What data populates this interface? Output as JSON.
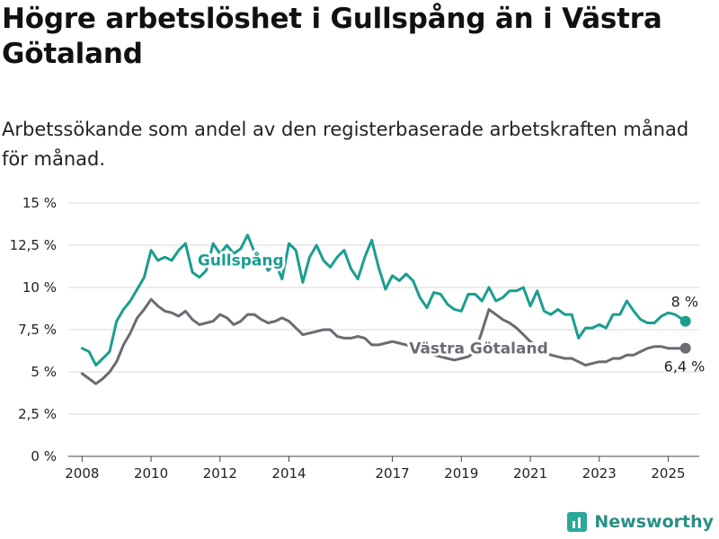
{
  "title": "Högre arbetslöshet i Gullspång än i Västra Götaland",
  "subtitle": "Arbetssökande som andel av den registerbaserade arbetskraften månad för månad.",
  "brand": {
    "name": "Newsworthy",
    "logo_icon": "bar-chart-icon"
  },
  "chart_data": {
    "type": "line",
    "xlim": [
      2007.6,
      2025.9
    ],
    "ylim": [
      0,
      15
    ],
    "y_ticks": [
      {
        "value": 0,
        "label": "0 %"
      },
      {
        "value": 2.5,
        "label": "2,5 %"
      },
      {
        "value": 5,
        "label": "5 %"
      },
      {
        "value": 7.5,
        "label": "7,5 %"
      },
      {
        "value": 10,
        "label": "10 %"
      },
      {
        "value": 12.5,
        "label": "12,5 %"
      },
      {
        "value": 15,
        "label": "15 %"
      }
    ],
    "x_ticks": [
      {
        "value": 2008,
        "label": "2008"
      },
      {
        "value": 2010,
        "label": "2010"
      },
      {
        "value": 2012,
        "label": "2012"
      },
      {
        "value": 2014,
        "label": "2014"
      },
      {
        "value": 2017,
        "label": "2017"
      },
      {
        "value": 2019,
        "label": "2019"
      },
      {
        "value": 2021,
        "label": "2021"
      },
      {
        "value": 2023,
        "label": "2023"
      },
      {
        "value": 2025,
        "label": "2025"
      }
    ],
    "grid": true,
    "legend": "inline labels",
    "series": [
      {
        "name": "Gullspång",
        "color": "#1a9e8f",
        "end_label": "8 %",
        "x": [
          2008.0,
          2008.2,
          2008.4,
          2008.6,
          2008.8,
          2009.0,
          2009.2,
          2009.4,
          2009.6,
          2009.8,
          2010.0,
          2010.2,
          2010.4,
          2010.6,
          2010.8,
          2011.0,
          2011.2,
          2011.4,
          2011.6,
          2011.8,
          2012.0,
          2012.2,
          2012.4,
          2012.6,
          2012.8,
          2013.0,
          2013.2,
          2013.4,
          2013.6,
          2013.8,
          2014.0,
          2014.2,
          2014.4,
          2014.6,
          2014.8,
          2015.0,
          2015.2,
          2015.4,
          2015.6,
          2015.8,
          2016.0,
          2016.2,
          2016.4,
          2016.6,
          2016.8,
          2017.0,
          2017.2,
          2017.4,
          2017.6,
          2017.8,
          2018.0,
          2018.2,
          2018.4,
          2018.6,
          2018.8,
          2019.0,
          2019.2,
          2019.4,
          2019.6,
          2019.8,
          2020.0,
          2020.2,
          2020.4,
          2020.6,
          2020.8,
          2021.0,
          2021.2,
          2021.4,
          2021.6,
          2021.8,
          2022.0,
          2022.2,
          2022.4,
          2022.6,
          2022.8,
          2023.0,
          2023.2,
          2023.4,
          2023.6,
          2023.8,
          2024.0,
          2024.2,
          2024.4,
          2024.6,
          2024.8,
          2025.0,
          2025.2,
          2025.5
        ],
        "values": [
          6.4,
          6.2,
          5.4,
          5.8,
          6.2,
          8.0,
          8.7,
          9.2,
          9.9,
          10.6,
          12.2,
          11.6,
          11.8,
          11.6,
          12.2,
          12.6,
          10.9,
          10.6,
          11.0,
          12.6,
          12.0,
          12.5,
          12.0,
          12.3,
          13.1,
          12.1,
          11.7,
          11.0,
          11.5,
          10.5,
          12.6,
          12.2,
          10.3,
          11.8,
          12.5,
          11.6,
          11.2,
          11.8,
          12.2,
          11.1,
          10.5,
          11.8,
          12.8,
          11.2,
          9.9,
          10.7,
          10.4,
          10.8,
          10.4,
          9.4,
          8.8,
          9.7,
          9.6,
          9.0,
          8.7,
          8.6,
          9.6,
          9.6,
          9.2,
          10.0,
          9.2,
          9.4,
          9.8,
          9.8,
          10.0,
          8.9,
          9.8,
          8.6,
          8.4,
          8.7,
          8.4,
          8.4,
          7.0,
          7.6,
          7.6,
          7.8,
          7.6,
          8.4,
          8.4,
          9.2,
          8.6,
          8.1,
          7.9,
          7.9,
          8.3,
          8.5,
          8.4,
          8.0
        ]
      },
      {
        "name": "Västra Götaland",
        "color": "#6b6b73",
        "end_label": "6,4 %",
        "x": [
          2008.0,
          2008.2,
          2008.4,
          2008.6,
          2008.8,
          2009.0,
          2009.2,
          2009.4,
          2009.6,
          2009.8,
          2010.0,
          2010.2,
          2010.4,
          2010.6,
          2010.8,
          2011.0,
          2011.2,
          2011.4,
          2011.6,
          2011.8,
          2012.0,
          2012.2,
          2012.4,
          2012.6,
          2012.8,
          2013.0,
          2013.2,
          2013.4,
          2013.6,
          2013.8,
          2014.0,
          2014.2,
          2014.4,
          2014.6,
          2014.8,
          2015.0,
          2015.2,
          2015.4,
          2015.6,
          2015.8,
          2016.0,
          2016.2,
          2016.4,
          2016.6,
          2016.8,
          2017.0,
          2017.2,
          2017.4,
          2017.6,
          2017.8,
          2018.0,
          2018.2,
          2018.4,
          2018.6,
          2018.8,
          2019.0,
          2019.2,
          2019.4,
          2019.6,
          2019.8,
          2020.0,
          2020.2,
          2020.4,
          2020.6,
          2020.8,
          2021.0,
          2021.2,
          2021.4,
          2021.6,
          2021.8,
          2022.0,
          2022.2,
          2022.4,
          2022.6,
          2022.8,
          2023.0,
          2023.2,
          2023.4,
          2023.6,
          2023.8,
          2024.0,
          2024.2,
          2024.4,
          2024.6,
          2024.8,
          2025.0,
          2025.2,
          2025.5
        ],
        "values": [
          4.9,
          4.6,
          4.3,
          4.6,
          5.0,
          5.6,
          6.6,
          7.3,
          8.2,
          8.7,
          9.3,
          8.9,
          8.6,
          8.5,
          8.3,
          8.6,
          8.1,
          7.8,
          7.9,
          8.0,
          8.4,
          8.2,
          7.8,
          8.0,
          8.4,
          8.4,
          8.1,
          7.9,
          8.0,
          8.2,
          8.0,
          7.6,
          7.2,
          7.3,
          7.4,
          7.5,
          7.5,
          7.1,
          7.0,
          7.0,
          7.1,
          7.0,
          6.6,
          6.6,
          6.7,
          6.8,
          6.7,
          6.6,
          6.5,
          6.4,
          6.2,
          6.0,
          5.9,
          5.8,
          5.7,
          5.8,
          5.9,
          6.2,
          7.4,
          8.7,
          8.4,
          8.1,
          7.9,
          7.6,
          7.2,
          6.8,
          6.5,
          6.2,
          6.0,
          5.9,
          5.8,
          5.8,
          5.6,
          5.4,
          5.5,
          5.6,
          5.6,
          5.8,
          5.8,
          6.0,
          6.0,
          6.2,
          6.4,
          6.5,
          6.5,
          6.4,
          6.4,
          6.4
        ]
      }
    ]
  }
}
